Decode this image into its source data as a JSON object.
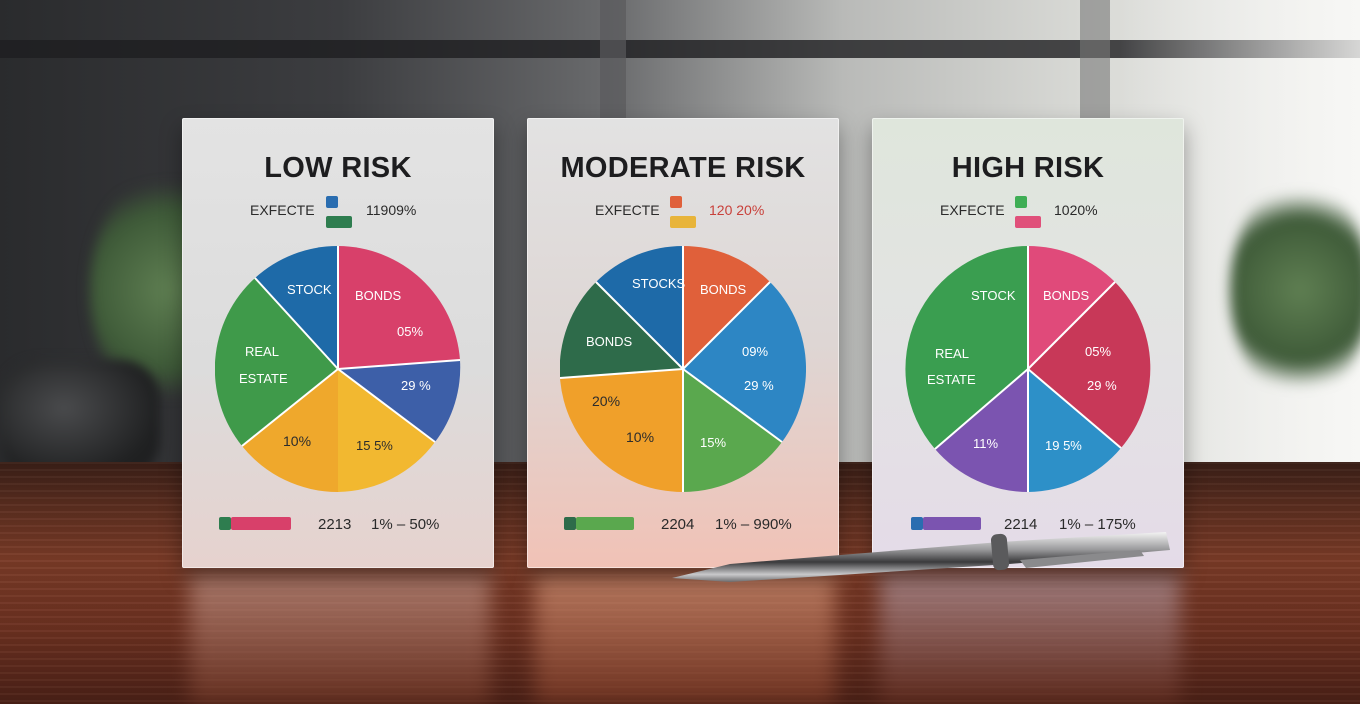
{
  "cards": [
    {
      "title": "LOW RISK",
      "expected_label": "EXFECTE",
      "expected_value": "11909%",
      "legend_colors": [
        "#2a6db0",
        "#2e7d4f"
      ],
      "slices": [
        {
          "label": "STOCK",
          "color": "#1e6aa8"
        },
        {
          "label": "BONDS",
          "color": "#d8406a",
          "value": "05%"
        },
        {
          "label": "",
          "color": "#3d5fa8",
          "value": "29 %"
        },
        {
          "label": "",
          "color": "#f0b52e",
          "value": "15 5%"
        },
        {
          "label": "",
          "color": "#f0a82a",
          "value": "10%"
        },
        {
          "label": "REAL ESTATE",
          "color": "#3f9a4a"
        }
      ],
      "bar_colors": [
        "#2e7d4f",
        "#d8406a"
      ],
      "bottom_code": "2213",
      "bottom_range": "1% – 50%"
    },
    {
      "title": "MODERATE RISK",
      "expected_label": "EXFECTE",
      "expected_value": "120 20%",
      "legend_colors": [
        "#e0603a",
        "#e8b43a"
      ],
      "slices": [
        {
          "label": "STOCKS",
          "color": "#1e6aa8"
        },
        {
          "label": "BONDS",
          "color": "#e0603a"
        },
        {
          "label": "",
          "color": "#2d86c4",
          "value": "09%"
        },
        {
          "label": "",
          "color": "#2d86c4",
          "value": "29 %"
        },
        {
          "label": "",
          "color": "#5aa84e",
          "value": "15%"
        },
        {
          "label": "",
          "color": "#f0a02a",
          "value": "10%"
        },
        {
          "label": "",
          "color": "#f0a02a",
          "value": "20%"
        },
        {
          "label": "BONDS",
          "color": "#2e6b4a"
        }
      ],
      "bar_colors": [
        "#2e6b4a",
        "#5aa84e"
      ],
      "bottom_code": "2204",
      "bottom_range": "1% – 990%"
    },
    {
      "title": "HIGH RISK",
      "expected_label": "EXFECTE",
      "expected_value": "1020%",
      "legend_colors": [
        "#3fae55",
        "#e0507a"
      ],
      "slices": [
        {
          "label": "STOCK",
          "color": "#3a9e50"
        },
        {
          "label": "BONDS",
          "color": "#e04a7a"
        },
        {
          "label": "",
          "color": "#c83858",
          "value": "05%"
        },
        {
          "label": "",
          "color": "#c83858",
          "value": "29 %"
        },
        {
          "label": "",
          "color": "#2d90c8",
          "value": "19 5%"
        },
        {
          "label": "",
          "color": "#7b54b0",
          "value": "11%"
        },
        {
          "label": "REAL ESTATE",
          "color": "#3a9e50"
        }
      ],
      "bar_colors": [
        "#2a6db0",
        "#7b54b0"
      ],
      "bottom_code": "2214",
      "bottom_range": "1% – 175%"
    }
  ]
}
